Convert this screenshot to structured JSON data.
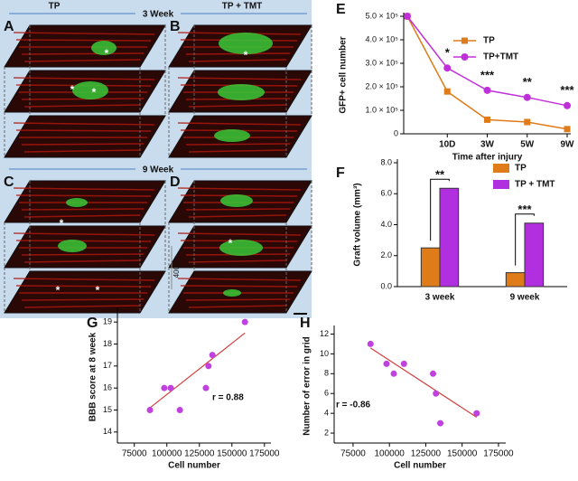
{
  "figure": {
    "panel_labels": [
      "A",
      "B",
      "C",
      "D",
      "E",
      "F",
      "G",
      "H"
    ],
    "headers": {
      "left": "TP",
      "right": "TP + TMT",
      "week1": "3 Week",
      "week2": "9 Week"
    },
    "scale_label": "400μm",
    "stars": [
      "*",
      "*",
      "*",
      "*",
      "*",
      "*",
      "*",
      "*"
    ]
  },
  "chart_data": [
    {
      "type": "line",
      "categories": [
        null,
        "10D",
        "3W",
        "5W",
        "9W"
      ],
      "series": [
        {
          "name": "TP",
          "color": "#e07b1a",
          "values": [
            500000,
            180000,
            60000,
            50000,
            20000
          ]
        },
        {
          "name": "TP+TMT",
          "color": "#c030d8",
          "values": [
            500000,
            280000,
            185000,
            155000,
            120000
          ]
        }
      ],
      "annotations": [
        "*",
        "***",
        "**",
        "***"
      ],
      "ylabel": "GFP+ cell number",
      "xlabel": "Time after injury",
      "ylim": [
        0,
        500000
      ],
      "yticks": [
        0,
        {
          "value": 100000,
          "label": "1.0 × 10⁵"
        },
        {
          "value": 200000,
          "label": "2.0 × 10⁵"
        },
        {
          "value": 300000,
          "label": "3.0 × 10⁵"
        },
        {
          "value": 400000,
          "label": "4.0 × 10⁵"
        },
        {
          "value": 500000,
          "label": "5.0 × 10⁵"
        }
      ]
    },
    {
      "type": "bar",
      "categories": [
        "3 week",
        "9 week"
      ],
      "series": [
        {
          "name": "TP",
          "color": "#e07b1a",
          "values": [
            2.5,
            0.9
          ]
        },
        {
          "name": "TP + TMT",
          "color": "#b030e0",
          "values": [
            6.35,
            4.1
          ]
        }
      ],
      "annotations": [
        "**",
        "***"
      ],
      "ylabel": "Graft volume (mm³)",
      "ylim": [
        0,
        8
      ],
      "yticks": [
        {
          "value": 0,
          "label": "0.0"
        },
        {
          "value": 2,
          "label": "2.0"
        },
        {
          "value": 4,
          "label": "4.0"
        },
        {
          "value": 6,
          "label": "6.0"
        },
        {
          "value": 8,
          "label": "8.0"
        }
      ]
    },
    {
      "type": "scatter",
      "color": "#c040e0",
      "fit_color": "#d04040",
      "x": [
        87000,
        98000,
        103000,
        110000,
        130000,
        132000,
        135000,
        160000
      ],
      "y": [
        15,
        16,
        16,
        15,
        16,
        17,
        17.5,
        19
      ],
      "fit": {
        "x": [
          87000,
          160000
        ],
        "y": [
          15.1,
          18.5
        ]
      },
      "annotation": "r = 0.88",
      "xlabel": "Cell number",
      "ylabel": "BBB score at 8 week",
      "xlim": [
        62000,
        180000
      ],
      "xticks": [
        75000,
        100000,
        125000,
        150000,
        175000
      ],
      "ylim": [
        13.5,
        19.5
      ],
      "yticks": [
        14,
        15,
        16,
        17,
        18,
        19
      ]
    },
    {
      "type": "scatter",
      "color": "#c040e0",
      "fit_color": "#d04040",
      "x": [
        87000,
        98000,
        103000,
        110000,
        130000,
        132000,
        135000,
        160000
      ],
      "y": [
        11,
        9,
        8,
        9,
        8,
        6,
        3,
        4
      ],
      "fit": {
        "x": [
          87000,
          160000
        ],
        "y": [
          10.6,
          3.6
        ]
      },
      "annotation": "r = -0.86",
      "xlabel": "Cell number",
      "ylabel": "Number of error in grid",
      "xlim": [
        62000,
        180000
      ],
      "xticks": [
        75000,
        100000,
        125000,
        150000,
        175000
      ],
      "ylim": [
        1,
        12.5
      ],
      "yticks": [
        2,
        4,
        6,
        8,
        10,
        12
      ]
    }
  ]
}
